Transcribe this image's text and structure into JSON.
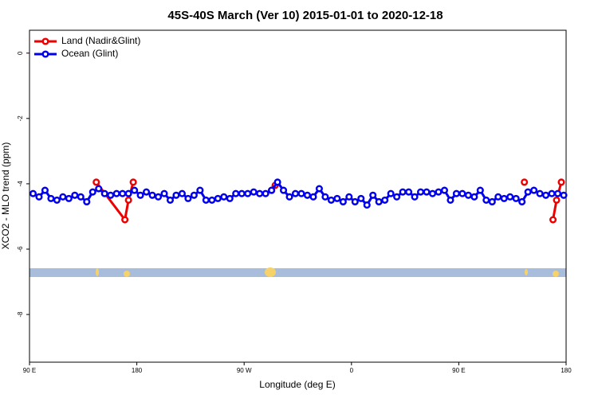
{
  "chart_data": {
    "type": "line",
    "title": "45S-40S March (Ver 10)   2015-01-01 to 2020-12-18",
    "x_label": "Longitude (deg E)",
    "y_label": "XCO2 - MLO trend (ppm)",
    "xlim": [
      90,
      540
    ],
    "xticks": [
      {
        "value": 90,
        "label": "90 E"
      },
      {
        "value": 180,
        "label": "180"
      },
      {
        "value": 270,
        "label": "90 W"
      },
      {
        "value": 360,
        "label": "0"
      },
      {
        "value": 450,
        "label": "90 E"
      },
      {
        "value": 540,
        "label": "180"
      }
    ],
    "ylim": [
      -9.46,
      0.7
    ],
    "yticks": [
      0,
      -2,
      -4,
      -6,
      -8
    ],
    "legend": "top-left",
    "series": [
      {
        "name": "Land (Nadir&Glint)",
        "color": "#ee0000",
        "x": [
          146,
          170,
          173,
          177,
          null,
          293,
          296,
          null,
          505,
          null,
          529,
          532,
          536
        ],
        "values": [
          -3.95,
          -5.1,
          -4.5,
          -3.95,
          null,
          -4.2,
          -4.05,
          null,
          -3.95,
          null,
          -5.1,
          -4.5,
          -3.95
        ]
      },
      {
        "name": "Ocean (Glint)",
        "color": "#0000ee",
        "x": [
          93,
          98,
          103,
          108,
          113,
          118,
          123,
          128,
          133,
          138,
          143,
          148,
          153,
          158,
          163,
          168,
          173,
          178,
          183,
          188,
          193,
          198,
          203,
          208,
          213,
          218,
          223,
          228,
          233,
          238,
          243,
          248,
          253,
          258,
          263,
          268,
          273,
          278,
          283,
          288,
          293,
          298,
          303,
          308,
          313,
          318,
          323,
          328,
          333,
          338,
          343,
          348,
          353,
          358,
          363,
          368,
          373,
          378,
          383,
          388,
          393,
          398,
          403,
          408,
          413,
          418,
          423,
          428,
          433,
          438,
          443,
          448,
          453,
          458,
          463,
          468,
          473,
          478,
          483,
          488,
          493,
          498,
          503,
          508,
          513,
          518,
          523,
          528,
          533,
          538
        ],
        "values": [
          -4.3,
          -4.4,
          -4.2,
          -4.45,
          -4.5,
          -4.4,
          -4.45,
          -4.35,
          -4.4,
          -4.55,
          -4.25,
          -4.15,
          -4.3,
          -4.35,
          -4.3,
          -4.3,
          -4.3,
          -4.2,
          -4.35,
          -4.25,
          -4.35,
          -4.4,
          -4.3,
          -4.5,
          -4.35,
          -4.3,
          -4.45,
          -4.35,
          -4.2,
          -4.5,
          -4.5,
          -4.45,
          -4.4,
          -4.45,
          -4.3,
          -4.3,
          -4.3,
          -4.25,
          -4.3,
          -4.3,
          -4.2,
          -3.95,
          -4.2,
          -4.4,
          -4.3,
          -4.3,
          -4.35,
          -4.4,
          -4.15,
          -4.4,
          -4.5,
          -4.45,
          -4.55,
          -4.4,
          -4.55,
          -4.45,
          -4.65,
          -4.35,
          -4.55,
          -4.5,
          -4.3,
          -4.4,
          -4.25,
          -4.25,
          -4.4,
          -4.25,
          -4.25,
          -4.3,
          -4.25,
          -4.2,
          -4.5,
          -4.3,
          -4.3,
          -4.35,
          -4.4,
          -4.2,
          -4.5,
          -4.55,
          -4.4,
          -4.45,
          -4.4,
          -4.45,
          -4.55,
          -4.25,
          -4.2,
          -4.3,
          -4.35,
          -4.3,
          -4.3,
          -4.35
        ]
      }
    ]
  }
}
